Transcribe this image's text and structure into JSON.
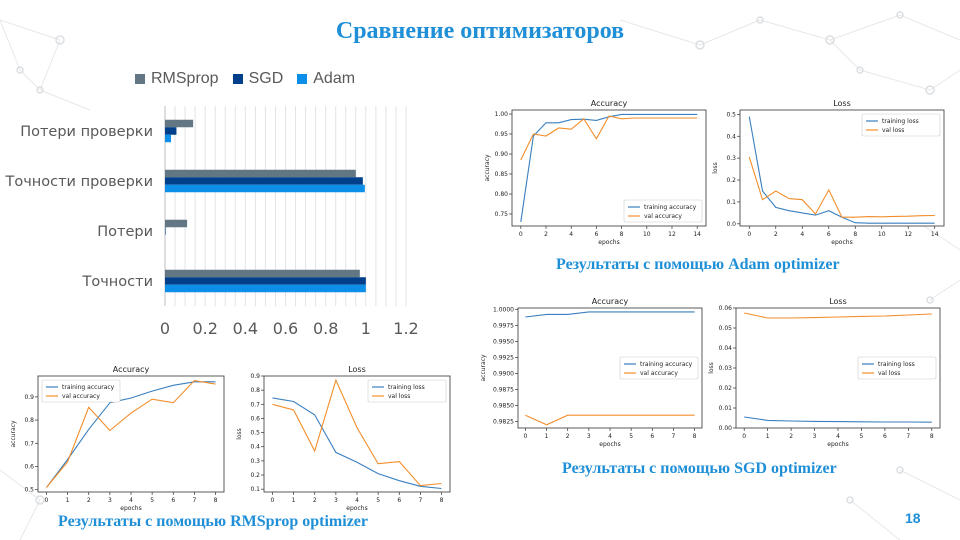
{
  "slide": {
    "title": "Сравнение оптимизаторов",
    "page_number": "18",
    "caption_adam": "Результаты с помощью Adam optimizer",
    "caption_sgd": "Результаты с помощью SGD optimizer",
    "caption_rms": "Результаты с помощью RMSprop optimizer"
  },
  "chart_data": [
    {
      "id": "main",
      "type": "bar",
      "orientation": "horizontal",
      "categories": [
        "Потери проверки",
        "Точности проверки",
        "Потери",
        "Точности"
      ],
      "series": [
        {
          "name": "RMSprop",
          "color": "#637684",
          "values": [
            0.14,
            0.95,
            0.11,
            0.97
          ]
        },
        {
          "name": "SGD",
          "color": "#003f8a",
          "values": [
            0.057,
            0.985,
            0.003,
            1.0
          ]
        },
        {
          "name": "Adam",
          "color": "#0c8fe8",
          "values": [
            0.03,
            0.995,
            0.0,
            1.0
          ]
        }
      ],
      "xticks": [
        "0",
        "0.2",
        "0.4",
        "0.6",
        "0.8",
        "1",
        "1.2"
      ],
      "xlim": [
        0,
        1.2
      ],
      "legend": "top",
      "grid": true
    },
    {
      "id": "adam_acc",
      "type": "line",
      "title": "Accuracy",
      "xlabel": "epochs",
      "ylabel": "accuracy",
      "xlim": [
        -0.7,
        14.7
      ],
      "ylim": [
        0.72,
        1.01
      ],
      "xticks": [
        0,
        2,
        4,
        6,
        8,
        10,
        12,
        14
      ],
      "yticks": [
        0.75,
        0.8,
        0.85,
        0.9,
        0.95,
        1.0
      ],
      "ytick_labels": [
        "0.75",
        "0.80",
        "0.85",
        "0.90",
        "0.95",
        "1.00"
      ],
      "legend": "lower right",
      "series": [
        {
          "name": "training accuracy",
          "color": "#3a7fbf",
          "x": [
            0,
            1,
            2,
            3,
            4,
            5,
            6,
            7,
            8,
            9,
            10,
            11,
            12,
            13,
            14
          ],
          "y": [
            0.73,
            0.945,
            0.978,
            0.978,
            0.986,
            0.987,
            0.984,
            0.993,
            0.999,
            0.999,
            0.999,
            0.999,
            0.999,
            0.999,
            0.999
          ]
        },
        {
          "name": "val accuracy",
          "color": "#f28e2b",
          "x": [
            0,
            1,
            2,
            3,
            4,
            5,
            6,
            7,
            8,
            9,
            10,
            11,
            12,
            13,
            14
          ],
          "y": [
            0.885,
            0.95,
            0.945,
            0.965,
            0.962,
            0.988,
            0.938,
            0.995,
            0.988,
            0.99,
            0.99,
            0.99,
            0.99,
            0.99,
            0.99
          ]
        }
      ]
    },
    {
      "id": "adam_loss",
      "type": "line",
      "title": "Loss",
      "xlabel": "epochs",
      "ylabel": "loss",
      "xlim": [
        -0.7,
        14.7
      ],
      "ylim": [
        -0.01,
        0.52
      ],
      "xticks": [
        0,
        2,
        4,
        6,
        8,
        10,
        12,
        14
      ],
      "yticks": [
        0.0,
        0.1,
        0.2,
        0.3,
        0.4,
        0.5
      ],
      "ytick_labels": [
        "0.0",
        "0.1",
        "0.2",
        "0.3",
        "0.4",
        "0.5"
      ],
      "legend": "upper right",
      "series": [
        {
          "name": "training loss",
          "color": "#3a7fbf",
          "x": [
            0,
            1,
            2,
            3,
            4,
            5,
            6,
            7,
            8,
            9,
            10,
            11,
            12,
            13,
            14
          ],
          "y": [
            0.49,
            0.15,
            0.075,
            0.06,
            0.05,
            0.04,
            0.06,
            0.03,
            0.005,
            0.003,
            0.003,
            0.003,
            0.003,
            0.003,
            0.003
          ]
        },
        {
          "name": "val loss",
          "color": "#f28e2b",
          "x": [
            0,
            1,
            2,
            3,
            4,
            5,
            6,
            7,
            8,
            9,
            10,
            11,
            12,
            13,
            14
          ],
          "y": [
            0.305,
            0.11,
            0.15,
            0.115,
            0.11,
            0.045,
            0.155,
            0.03,
            0.03,
            0.033,
            0.032,
            0.034,
            0.035,
            0.037,
            0.038
          ]
        }
      ]
    },
    {
      "id": "sgd_acc",
      "type": "line",
      "title": "Accuracy",
      "xlabel": "epochs",
      "ylabel": "accuracy",
      "xlim": [
        -0.35,
        8.35
      ],
      "ylim": [
        0.9815,
        1.0002
      ],
      "xticks": [
        0,
        1,
        2,
        3,
        4,
        5,
        6,
        7,
        8
      ],
      "yticks": [
        0.9825,
        0.985,
        0.9875,
        0.99,
        0.9925,
        0.995,
        0.9975,
        1.0
      ],
      "ytick_labels": [
        "0.9825",
        "0.9850",
        "0.9875",
        "0.9900",
        "0.9925",
        "0.9950",
        "0.9975",
        "1.0000"
      ],
      "legend": "center right",
      "series": [
        {
          "name": "training accuracy",
          "color": "#3a7fbf",
          "x": [
            0,
            1,
            2,
            3,
            4,
            5,
            6,
            7,
            8
          ],
          "y": [
            0.9988,
            0.9992,
            0.9992,
            0.9996,
            0.9996,
            0.9996,
            0.9996,
            0.9996,
            0.9996
          ]
        },
        {
          "name": "val accuracy",
          "color": "#f28e2b",
          "x": [
            0,
            1,
            2,
            3,
            4,
            5,
            6,
            7,
            8
          ],
          "y": [
            0.9835,
            0.982,
            0.9835,
            0.9835,
            0.9835,
            0.9835,
            0.9835,
            0.9835,
            0.9835
          ]
        }
      ]
    },
    {
      "id": "sgd_loss",
      "type": "line",
      "title": "Loss",
      "xlabel": "epochs",
      "ylabel": "loss",
      "xlim": [
        -0.35,
        8.35
      ],
      "ylim": [
        0.0,
        0.06
      ],
      "xticks": [
        0,
        1,
        2,
        3,
        4,
        5,
        6,
        7,
        8
      ],
      "yticks": [
        0.0,
        0.01,
        0.02,
        0.03,
        0.04,
        0.05,
        0.06
      ],
      "ytick_labels": [
        "0.00",
        "0.01",
        "0.02",
        "0.03",
        "0.04",
        "0.05",
        "0.06"
      ],
      "legend": "center right",
      "series": [
        {
          "name": "training loss",
          "color": "#3a7fbf",
          "x": [
            0,
            1,
            2,
            3,
            4,
            5,
            6,
            7,
            8
          ],
          "y": [
            0.0055,
            0.0038,
            0.0035,
            0.0033,
            0.0032,
            0.0031,
            0.003,
            0.003,
            0.0029
          ]
        },
        {
          "name": "val loss",
          "color": "#f28e2b",
          "x": [
            0,
            1,
            2,
            3,
            4,
            5,
            6,
            7,
            8
          ],
          "y": [
            0.0575,
            0.055,
            0.055,
            0.0552,
            0.0555,
            0.0558,
            0.056,
            0.0565,
            0.057
          ]
        }
      ]
    },
    {
      "id": "rms_acc",
      "type": "line",
      "title": "Accuracy",
      "xlabel": "epochs",
      "ylabel": "accuracy",
      "xlim": [
        -0.4,
        8.4
      ],
      "ylim": [
        0.49,
        0.99
      ],
      "xticks": [
        0,
        1,
        2,
        3,
        4,
        5,
        6,
        7,
        8
      ],
      "yticks": [
        0.5,
        0.6,
        0.7,
        0.8,
        0.9
      ],
      "ytick_labels": [
        "0.5",
        "0.6",
        "0.7",
        "0.8",
        "0.9"
      ],
      "legend": "upper left",
      "series": [
        {
          "name": "training accuracy",
          "color": "#3a7fbf",
          "x": [
            0,
            1,
            2,
            3,
            4,
            5,
            6,
            7,
            8
          ],
          "y": [
            0.51,
            0.63,
            0.76,
            0.875,
            0.895,
            0.925,
            0.95,
            0.965,
            0.965
          ]
        },
        {
          "name": "val accuracy",
          "color": "#f28e2b",
          "x": [
            0,
            1,
            2,
            3,
            4,
            5,
            6,
            7,
            8
          ],
          "y": [
            0.51,
            0.62,
            0.855,
            0.755,
            0.83,
            0.89,
            0.875,
            0.97,
            0.955
          ]
        }
      ]
    },
    {
      "id": "rms_loss",
      "type": "line",
      "title": "Loss",
      "xlabel": "epochs",
      "ylabel": "loss",
      "xlim": [
        -0.4,
        8.4
      ],
      "ylim": [
        0.08,
        0.9
      ],
      "xticks": [
        0,
        1,
        2,
        3,
        4,
        5,
        6,
        7,
        8
      ],
      "yticks": [
        0.1,
        0.2,
        0.3,
        0.4,
        0.5,
        0.6,
        0.7,
        0.8,
        0.9
      ],
      "ytick_labels": [
        "0.1",
        "0.2",
        "0.3",
        "0.4",
        "0.5",
        "0.6",
        "0.7",
        "0.8",
        "0.9"
      ],
      "legend": "upper right",
      "series": [
        {
          "name": "training loss",
          "color": "#3a7fbf",
          "x": [
            0,
            1,
            2,
            3,
            4,
            5,
            6,
            7,
            8
          ],
          "y": [
            0.745,
            0.72,
            0.625,
            0.36,
            0.29,
            0.21,
            0.16,
            0.12,
            0.105
          ]
        },
        {
          "name": "val loss",
          "color": "#f28e2b",
          "x": [
            0,
            1,
            2,
            3,
            4,
            5,
            6,
            7,
            8
          ],
          "y": [
            0.7,
            0.66,
            0.37,
            0.87,
            0.535,
            0.28,
            0.295,
            0.125,
            0.14
          ]
        }
      ]
    }
  ]
}
